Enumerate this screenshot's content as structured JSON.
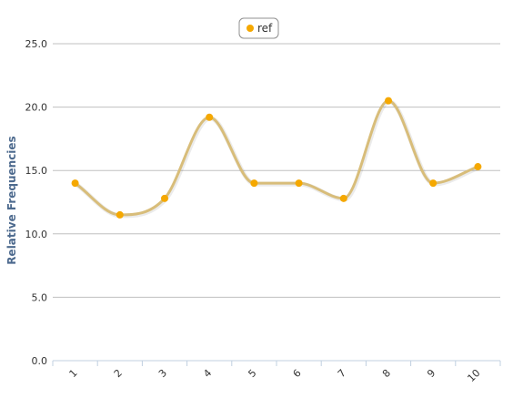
{
  "chart_data": {
    "type": "line",
    "smooth": true,
    "categories": [
      "1",
      "2",
      "3",
      "4",
      "5",
      "6",
      "7",
      "8",
      "9",
      "10"
    ],
    "series": [
      {
        "name": "ref",
        "values": [
          14.0,
          11.5,
          12.8,
          19.2,
          14.0,
          14.0,
          12.8,
          20.5,
          14.0,
          15.3
        ],
        "color": "#f5a800",
        "line_color": "#d8bd7a"
      }
    ],
    "ylabel": "Relative Frequencies",
    "ylim": [
      0,
      25
    ],
    "yticks": [
      "0.0",
      "5.0",
      "10.0",
      "15.0",
      "20.0",
      "25.0"
    ],
    "grid": true,
    "legend_position": "top-center",
    "colors": {
      "grid": "#c0c0c0",
      "axis_title": "#4d6a8e",
      "tick_text": "#333333",
      "x_axis_line": "#c0d0e0"
    }
  }
}
